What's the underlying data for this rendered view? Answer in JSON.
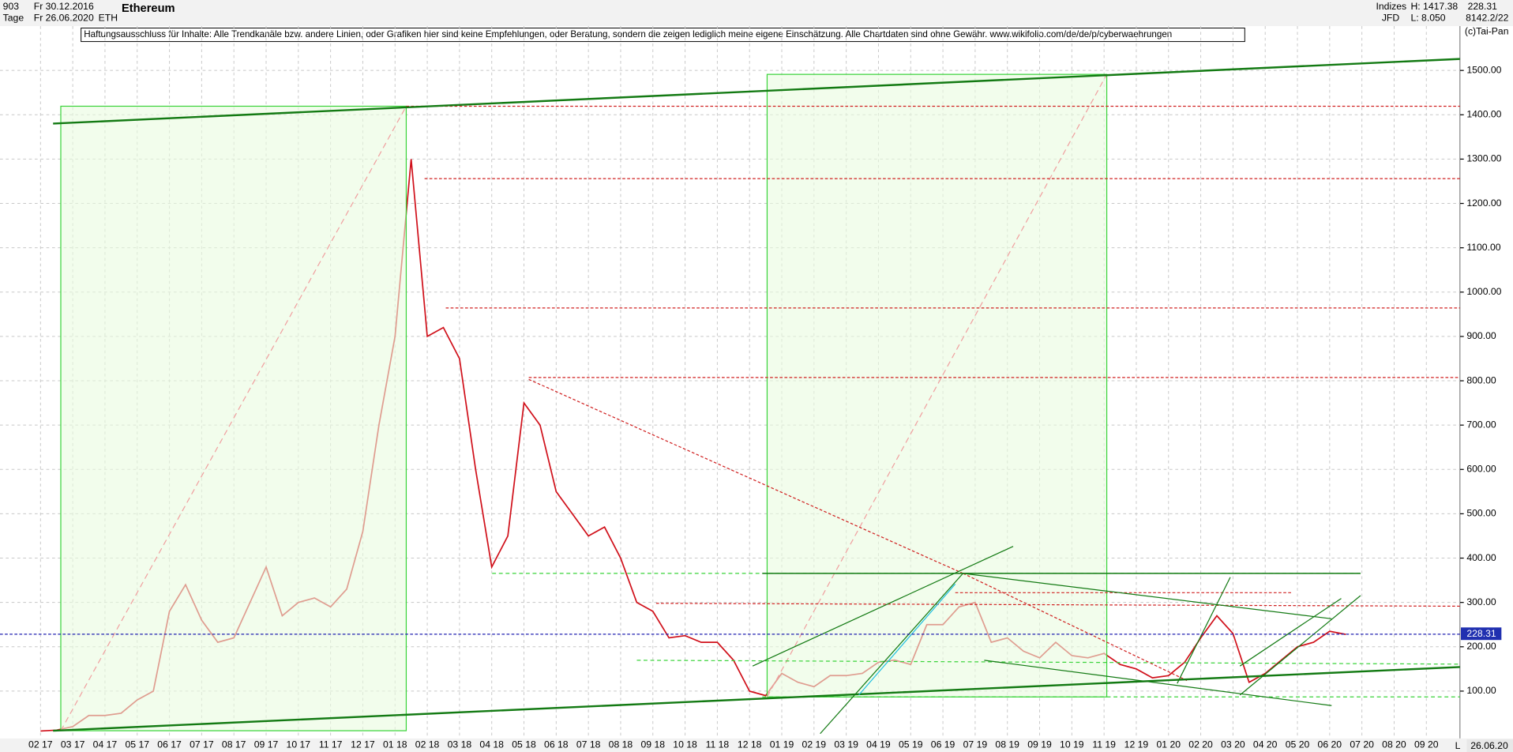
{
  "header": {
    "count": "903",
    "start_date": "Fr 30.12.2016",
    "period": "Tage",
    "end_date": "Fr 26.06.2020",
    "title": "Ethereum",
    "symbol": "ETH",
    "group": "Indizes",
    "source": "JFD",
    "high": "H: 1417.38",
    "low": "L: 8.050",
    "last": "228.31",
    "code": "8142.2/22",
    "copyright": "(c)Tai-Pan",
    "disclaimer": "Haftungsausschluss für Inhalte: Alle Trendkanäle bzw. andere Linien, oder Grafiken hier sind keine Empfehlungen, oder Beratung, sondern die zeigen lediglich meine eigene Einschätzung. Alle Chartdaten sind ohne Gewähr.  www.wikifolio.com/de/de/p/cyberwaehrungen",
    "price_tag": "228.31",
    "date_tag": "26.06.20",
    "scale_mode": "L"
  },
  "chart_data": {
    "type": "line",
    "color": "#d0101a",
    "categories": [
      "02 17",
      null,
      "03 17",
      null,
      "04 17",
      null,
      "05 17",
      null,
      "06 17",
      null,
      "07 17",
      null,
      "08 17",
      null,
      "09 17",
      null,
      "10 17",
      null,
      "11 17",
      null,
      "12 17",
      null,
      "01 18",
      null,
      "02 18",
      null,
      "03 18",
      null,
      "04 18",
      null,
      "05 18",
      null,
      "06 18",
      null,
      "07 18",
      null,
      "08 18",
      null,
      "09 18",
      null,
      "10 18",
      null,
      "11 18",
      null,
      "12 18",
      null,
      "01 19",
      null,
      "02 19",
      null,
      "03 19",
      null,
      "04 19",
      null,
      "05 19",
      null,
      "06 19",
      null,
      "07 19",
      null,
      "08 19",
      null,
      "09 19",
      null,
      "10 19",
      null,
      "11 19",
      null,
      "12 19",
      null,
      "01 20",
      null,
      "02 20",
      null,
      "03 20",
      null,
      "04 20",
      null,
      "05 20",
      null,
      "06 20",
      null,
      "07 20",
      null,
      "08 20",
      null,
      "09 20"
    ],
    "values": [
      10,
      12,
      20,
      45,
      45,
      50,
      80,
      100,
      280,
      340,
      260,
      210,
      220,
      300,
      380,
      270,
      300,
      310,
      290,
      330,
      460,
      700,
      900,
      1300,
      900,
      920,
      850,
      600,
      380,
      450,
      750,
      700,
      550,
      500,
      450,
      470,
      400,
      300,
      280,
      220,
      225,
      210,
      210,
      170,
      100,
      90,
      140,
      120,
      110,
      135,
      135,
      140,
      165,
      170,
      160,
      250,
      250,
      290,
      300,
      210,
      220,
      190,
      175,
      210,
      180,
      175,
      185,
      160,
      150,
      130,
      135,
      165,
      220,
      270,
      230,
      120,
      140,
      170,
      200,
      210,
      235,
      228,
      null,
      null,
      null,
      null,
      null
    ],
    "ylim": [
      10,
      1600
    ],
    "yticks": [
      {
        "value": 100,
        "label": "100.00"
      },
      {
        "value": 200,
        "label": "200.00"
      },
      {
        "value": 300,
        "label": "300.00"
      },
      {
        "value": 400,
        "label": "400.00"
      },
      {
        "value": 500,
        "label": "500.00"
      },
      {
        "value": 600,
        "label": "600.00"
      },
      {
        "value": 700,
        "label": "700.00"
      },
      {
        "value": 800,
        "label": "800.00"
      },
      {
        "value": 900,
        "label": "900.00"
      },
      {
        "value": 1000,
        "label": "1000.00"
      },
      {
        "value": 1100,
        "label": "1100.00"
      },
      {
        "value": 1200,
        "label": "1200.00"
      },
      {
        "value": 1300,
        "label": "1300.00"
      },
      {
        "value": 1400,
        "label": "1400.00"
      },
      {
        "value": 1500,
        "label": "1500.00"
      }
    ],
    "grid": true
  }
}
